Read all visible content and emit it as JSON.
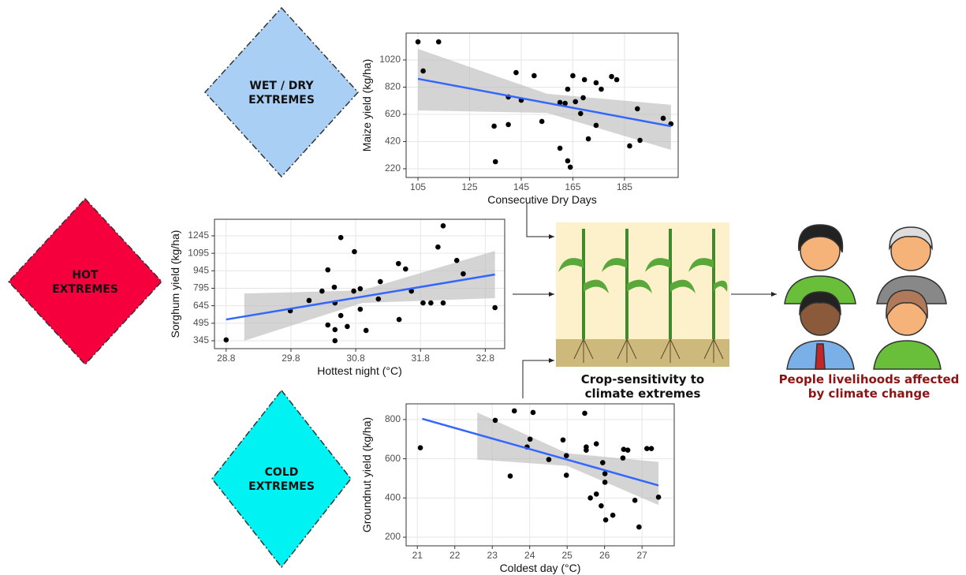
{
  "chart_data": [
    {
      "type": "scatter",
      "x_label": "Consecutive Dry Days",
      "y_label": "Maize yield (kg/ha)",
      "xlim": [
        100.4,
        205.8
      ],
      "ylim": [
        156,
        1217
      ],
      "xticks": [
        105,
        125,
        145,
        165,
        185
      ],
      "yticks": [
        220,
        420,
        620,
        820,
        1020
      ],
      "grid": true,
      "color": "#000000",
      "fit_color": "#3366ff",
      "band_color": "#bdbdbd",
      "x": [
        105,
        113,
        107,
        135,
        134.5,
        140,
        140,
        143,
        145,
        150,
        153,
        160,
        160,
        162,
        163,
        163,
        164,
        165,
        166,
        168,
        169,
        169.5,
        171,
        174,
        174,
        176,
        180,
        182,
        187,
        190,
        191,
        200,
        203
      ],
      "values": [
        1153,
        1153,
        939,
        272,
        533,
        545,
        748,
        927,
        724,
        904,
        568,
        371,
        707,
        701,
        805,
        278,
        232,
        904,
        713,
        626,
        742,
        875,
        440,
        852,
        539,
        805,
        898,
        875,
        388,
        661,
        429,
        591,
        550
      ],
      "fit": {
        "x": [
          105,
          203
        ],
        "y": [
          881,
          533
        ]
      },
      "band": {
        "x": [
          105,
          155,
          203
        ],
        "lower": [
          649,
          631,
          359
        ],
        "upper": [
          1101,
          771,
          690
        ]
      }
    },
    {
      "type": "scatter",
      "x_label": "Hottest night (°C)",
      "y_label": "Sorghum yield (kg/ha)",
      "xlim": [
        28.62,
        33.1
      ],
      "ylim": [
        277,
        1387
      ],
      "xticks": [
        28.8,
        29.8,
        30.8,
        31.8,
        32.8
      ],
      "yticks": [
        345,
        495,
        645,
        795,
        945,
        1095,
        1245
      ],
      "grid": true,
      "color": "#000000",
      "fit_color": "#3366ff",
      "band_color": "#bdbdbd",
      "x": [
        28.8,
        29.79,
        30.08,
        30.28,
        30.37,
        30.37,
        30.47,
        30.48,
        30.48,
        30.48,
        30.57,
        30.57,
        30.67,
        30.77,
        30.78,
        30.87,
        30.87,
        30.96,
        31.15,
        31.18,
        31.46,
        31.47,
        31.57,
        31.66,
        31.84,
        31.96,
        32.07,
        32.15,
        32.15,
        32.36,
        32.46,
        32.95
      ],
      "values": [
        352,
        602,
        690,
        771,
        953,
        480,
        804,
        669,
        440,
        345,
        1230,
        561,
        467,
        771,
        1109,
        791,
        615,
        433,
        703,
        852,
        1007,
        527,
        960,
        771,
        669,
        669,
        1149,
        1331,
        669,
        1034,
        919,
        629
      ],
      "fit": {
        "x": [
          28.8,
          32.95
        ],
        "y": [
          527,
          913
        ]
      },
      "band": {
        "x": [
          29.08,
          30.9,
          32.95
        ],
        "lower": [
          345,
          669,
          710
        ],
        "upper": [
          750,
          777,
          1115
        ]
      }
    },
    {
      "type": "scatter",
      "x_label": "Coldest day (°C)",
      "y_label": "Groundnut yield (kg/ha)",
      "xlim": [
        20.7,
        27.86
      ],
      "ylim": [
        156,
        880
      ],
      "xticks": [
        21,
        22,
        23,
        24,
        25,
        26,
        27
      ],
      "yticks": [
        200,
        400,
        600,
        800
      ],
      "grid": true,
      "color": "#000000",
      "fit_color": "#3366ff",
      "band_color": "#bdbdbd",
      "x": [
        21.08,
        23.08,
        23.48,
        23.59,
        23.93,
        24.01,
        24.09,
        24.51,
        24.89,
        24.98,
        24.98,
        25.47,
        25.51,
        25.51,
        25.62,
        25.78,
        25.78,
        25.91,
        25.95,
        26.01,
        26.01,
        26.03,
        26.22,
        26.49,
        26.51,
        26.62,
        26.81,
        26.92,
        27.13,
        27.25,
        27.44
      ],
      "values": [
        656,
        796,
        512,
        844,
        660,
        700,
        836,
        596,
        696,
        616,
        516,
        832,
        660,
        644,
        400,
        676,
        420,
        360,
        580,
        524,
        480,
        288,
        312,
        604,
        648,
        644,
        388,
        252,
        652,
        652,
        404
      ],
      "fit": {
        "x": [
          21.13,
          27.44
        ],
        "y": [
          804,
          464
        ]
      },
      "band": {
        "x": [
          22.6,
          25,
          27.44
        ],
        "lower": [
          596,
          564,
          364
        ],
        "upper": [
          836,
          628,
          584
        ]
      }
    }
  ],
  "diamonds": [
    {
      "lines": [
        "WET / DRY",
        "EXTREMES"
      ],
      "color": "#a9cff5"
    },
    {
      "lines": [
        "HOT",
        "EXTREMES"
      ],
      "color": "#f5003c"
    },
    {
      "lines": [
        "COLD",
        "EXTREMES"
      ],
      "color": "#00f2f2"
    }
  ],
  "crop_caption": [
    "Crop-sensitivity to",
    "climate extremes"
  ],
  "people_caption": [
    "People livelihoods affected",
    "by climate change"
  ]
}
